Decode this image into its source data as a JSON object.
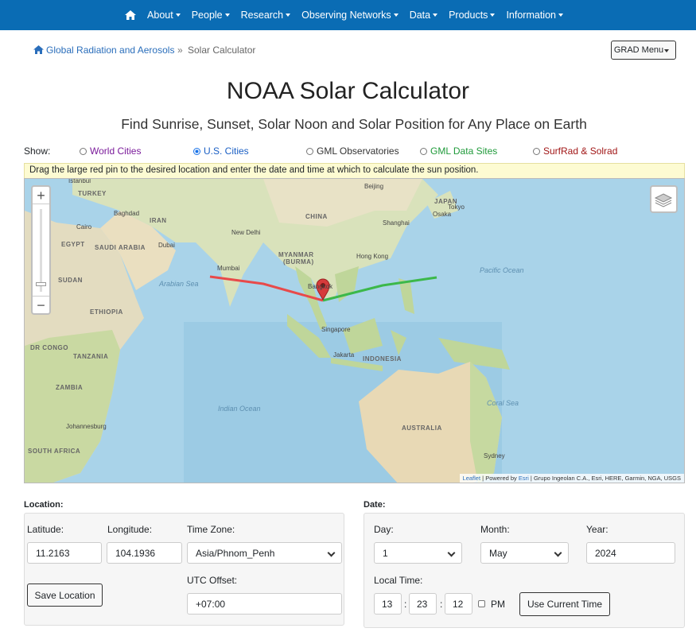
{
  "nav": {
    "items": [
      "About",
      "People",
      "Research",
      "Observing Networks",
      "Data",
      "Products",
      "Information"
    ]
  },
  "breadcrumb": {
    "items": [
      "Global Radiation and Aerosols",
      "Solar Calculator"
    ],
    "separator": "»"
  },
  "grad_menu": "GRAD Menu",
  "title": "NOAA Solar Calculator",
  "subtitle": "Find Sunrise, Sunset, Solar Noon and Solar Position for Any Place on Earth",
  "show": {
    "label": "Show:",
    "options": [
      {
        "label": "World Cities",
        "checked": false
      },
      {
        "label": "U.S. Cities",
        "checked": true
      },
      {
        "label": "GML Observatories",
        "checked": false
      },
      {
        "label": "GML Data Sites",
        "checked": false
      },
      {
        "label": "SurfRad & Solrad",
        "checked": false
      }
    ]
  },
  "instructions": "Drag the large red pin to the desired location and enter the date and time at which to calculate the sun position.",
  "map": {
    "zoom_in": "+",
    "zoom_out": "−",
    "labels": [
      "Istanbul",
      "TURKEY",
      "Baghdad",
      "IRAN",
      "Cairo",
      "EGYPT",
      "SAUDI ARABIA",
      "Dubai",
      "SUDAN",
      "Arabian Sea",
      "Mumbai",
      "New Delhi",
      "CHINA",
      "Beijing",
      "JAPAN",
      "Tokyo",
      "Osaka",
      "Shanghai",
      "MYANMAR",
      "(BURMA)",
      "Hong Kong",
      "Bangkok",
      "Pacific Ocean",
      "ETHIOPIA",
      "Singapore",
      "DR CONGO",
      "TANZANIA",
      "Jakarta",
      "INDONESIA",
      "ZAMBIA",
      "Indian Ocean",
      "Coral Sea",
      "AUSTRALIA",
      "Johannesburg",
      "SOUTH AFRICA",
      "Sydney"
    ],
    "attribution": {
      "leaflet": "Leaflet",
      "powered": "| Powered by",
      "esri": "Esri",
      "rest": "| Grupo Ingeolan C.A., Esri, HERE, Garmin, NGA, USGS"
    }
  },
  "location": {
    "heading": "Location:",
    "latitude": {
      "label": "Latitude:",
      "value": 11.2163
    },
    "longitude": {
      "label": "Longitude:",
      "value": 104.1936
    },
    "time_zone": {
      "label": "Time Zone:",
      "value": "Asia/Phnom_Penh"
    },
    "utc_offset": {
      "label": "UTC Offset:",
      "value": "+07:00"
    },
    "save": "Save Location"
  },
  "date": {
    "heading": "Date:",
    "day": {
      "label": "Day:",
      "value": 1
    },
    "month": {
      "label": "Month:",
      "value": "May"
    },
    "year": {
      "label": "Year:",
      "value": 2024
    },
    "local_time": {
      "label": "Local Time:",
      "hour": 13,
      "minute": 23,
      "second": 12,
      "separator": ":",
      "pm": "PM"
    },
    "use_current": "Use Current Time"
  }
}
